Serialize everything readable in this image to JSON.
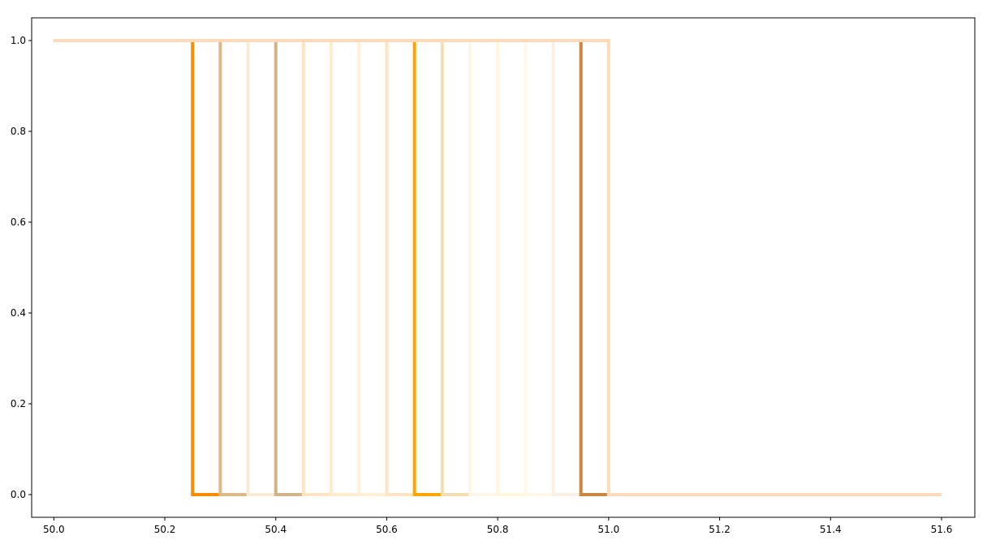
{
  "chart_data": {
    "type": "line",
    "step": true,
    "title": "",
    "xlabel": "",
    "ylabel": "",
    "xlim": [
      49.96,
      51.66
    ],
    "ylim": [
      -0.05,
      1.05
    ],
    "xticks": [
      "50.0",
      "50.2",
      "50.4",
      "50.6",
      "50.8",
      "51.0",
      "51.2",
      "51.4",
      "51.6"
    ],
    "yticks": [
      "0.0",
      "0.2",
      "0.4",
      "0.6",
      "0.8",
      "1.0"
    ],
    "grid": false,
    "legend": "none",
    "series": [
      {
        "color": "#FF8C00",
        "x0": 50.25,
        "x1": 50.3
      },
      {
        "color": "#DEB887",
        "x0": 50.3,
        "x1": 50.35
      },
      {
        "color": "#FAEBD7",
        "x0": 50.35,
        "x1": 50.4
      },
      {
        "color": "#D2B48C",
        "x0": 50.4,
        "x1": 50.45
      },
      {
        "color": "#FFE4C4",
        "x0": 50.45,
        "x1": 50.5
      },
      {
        "color": "#FFEBCD",
        "x0": 50.5,
        "x1": 50.55
      },
      {
        "color": "#FFEFD5",
        "x0": 50.55,
        "x1": 50.6
      },
      {
        "color": "#FFE4C4",
        "x0": 50.6,
        "x1": 50.65
      },
      {
        "color": "#FFA500",
        "x0": 50.65,
        "x1": 50.7
      },
      {
        "color": "#F5DEB3",
        "x0": 50.7,
        "x1": 50.75
      },
      {
        "color": "#FDF5E6",
        "x0": 50.75,
        "x1": 50.8
      },
      {
        "color": "#FFF8DC",
        "x0": 50.8,
        "x1": 50.85
      },
      {
        "color": "#FFF8E7",
        "x0": 50.85,
        "x1": 50.9
      },
      {
        "color": "#FAF0E6",
        "x0": 50.9,
        "x1": 50.95
      },
      {
        "color": "#CD853F",
        "x0": 50.95,
        "x1": 51.0
      },
      {
        "color": "#FFDAB9",
        "x0": 51.0,
        "x1": 51.6
      }
    ],
    "x_start": 50.0,
    "base_color": "#FFDAB9"
  }
}
